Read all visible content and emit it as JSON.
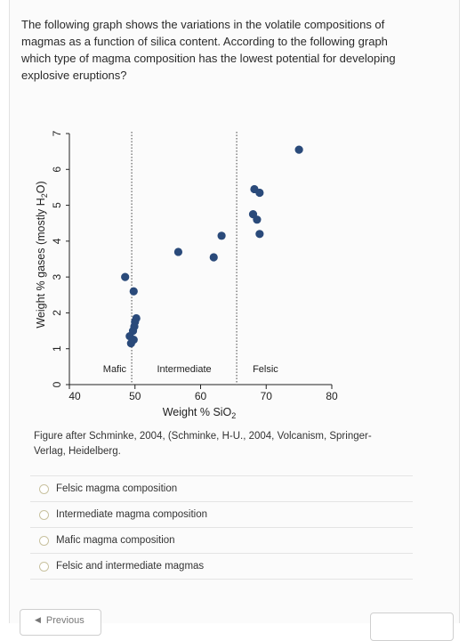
{
  "question": {
    "text": "The following graph shows the variations in the volatile compositions of magmas as a function of silica content. According to the following graph which type of magma composition has the lowest potential for developing explosive eruptions?"
  },
  "chart_data": {
    "type": "scatter",
    "xlabel": "Weight % SiO",
    "xlabel_sub": "2",
    "ylabel": "Weight % gases (mostly H",
    "ylabel_sub": "2",
    "ylabel_end": "O)",
    "xlim": [
      40,
      80
    ],
    "ylim": [
      0,
      7
    ],
    "xticks": [
      40,
      50,
      60,
      70,
      80
    ],
    "yticks": [
      0,
      1,
      2,
      3,
      4,
      5,
      6,
      7
    ],
    "grid": false,
    "dividers": [
      49.5,
      65.5
    ],
    "regions": [
      "Mafic",
      "Intermediate",
      "Felsic"
    ],
    "points": [
      {
        "x": 48.5,
        "y": 3.0
      },
      {
        "x": 49.8,
        "y": 2.6
      },
      {
        "x": 50.2,
        "y": 1.85
      },
      {
        "x": 50.0,
        "y": 1.75
      },
      {
        "x": 49.9,
        "y": 1.62
      },
      {
        "x": 49.7,
        "y": 1.5
      },
      {
        "x": 49.2,
        "y": 1.35
      },
      {
        "x": 49.8,
        "y": 1.25
      },
      {
        "x": 49.4,
        "y": 1.15
      },
      {
        "x": 56.6,
        "y": 3.7
      },
      {
        "x": 62.0,
        "y": 3.55
      },
      {
        "x": 63.2,
        "y": 4.15
      },
      {
        "x": 68.2,
        "y": 5.45
      },
      {
        "x": 69.0,
        "y": 5.35
      },
      {
        "x": 68.0,
        "y": 4.75
      },
      {
        "x": 68.6,
        "y": 4.6
      },
      {
        "x": 69.0,
        "y": 4.2
      },
      {
        "x": 75.0,
        "y": 6.55
      }
    ],
    "point_color": "#2a4a7a"
  },
  "caption": "Figure after Schminke, 2004, (Schminke, H-U., 2004, Volcanism, Springer-Verlag, Heidelberg.",
  "options": [
    {
      "label": "Felsic magma composition"
    },
    {
      "label": "Intermediate magma composition"
    },
    {
      "label": "Mafic magma composition"
    },
    {
      "label": "Felsic and intermediate magmas"
    }
  ],
  "nav": {
    "previous_label": "Previous"
  }
}
